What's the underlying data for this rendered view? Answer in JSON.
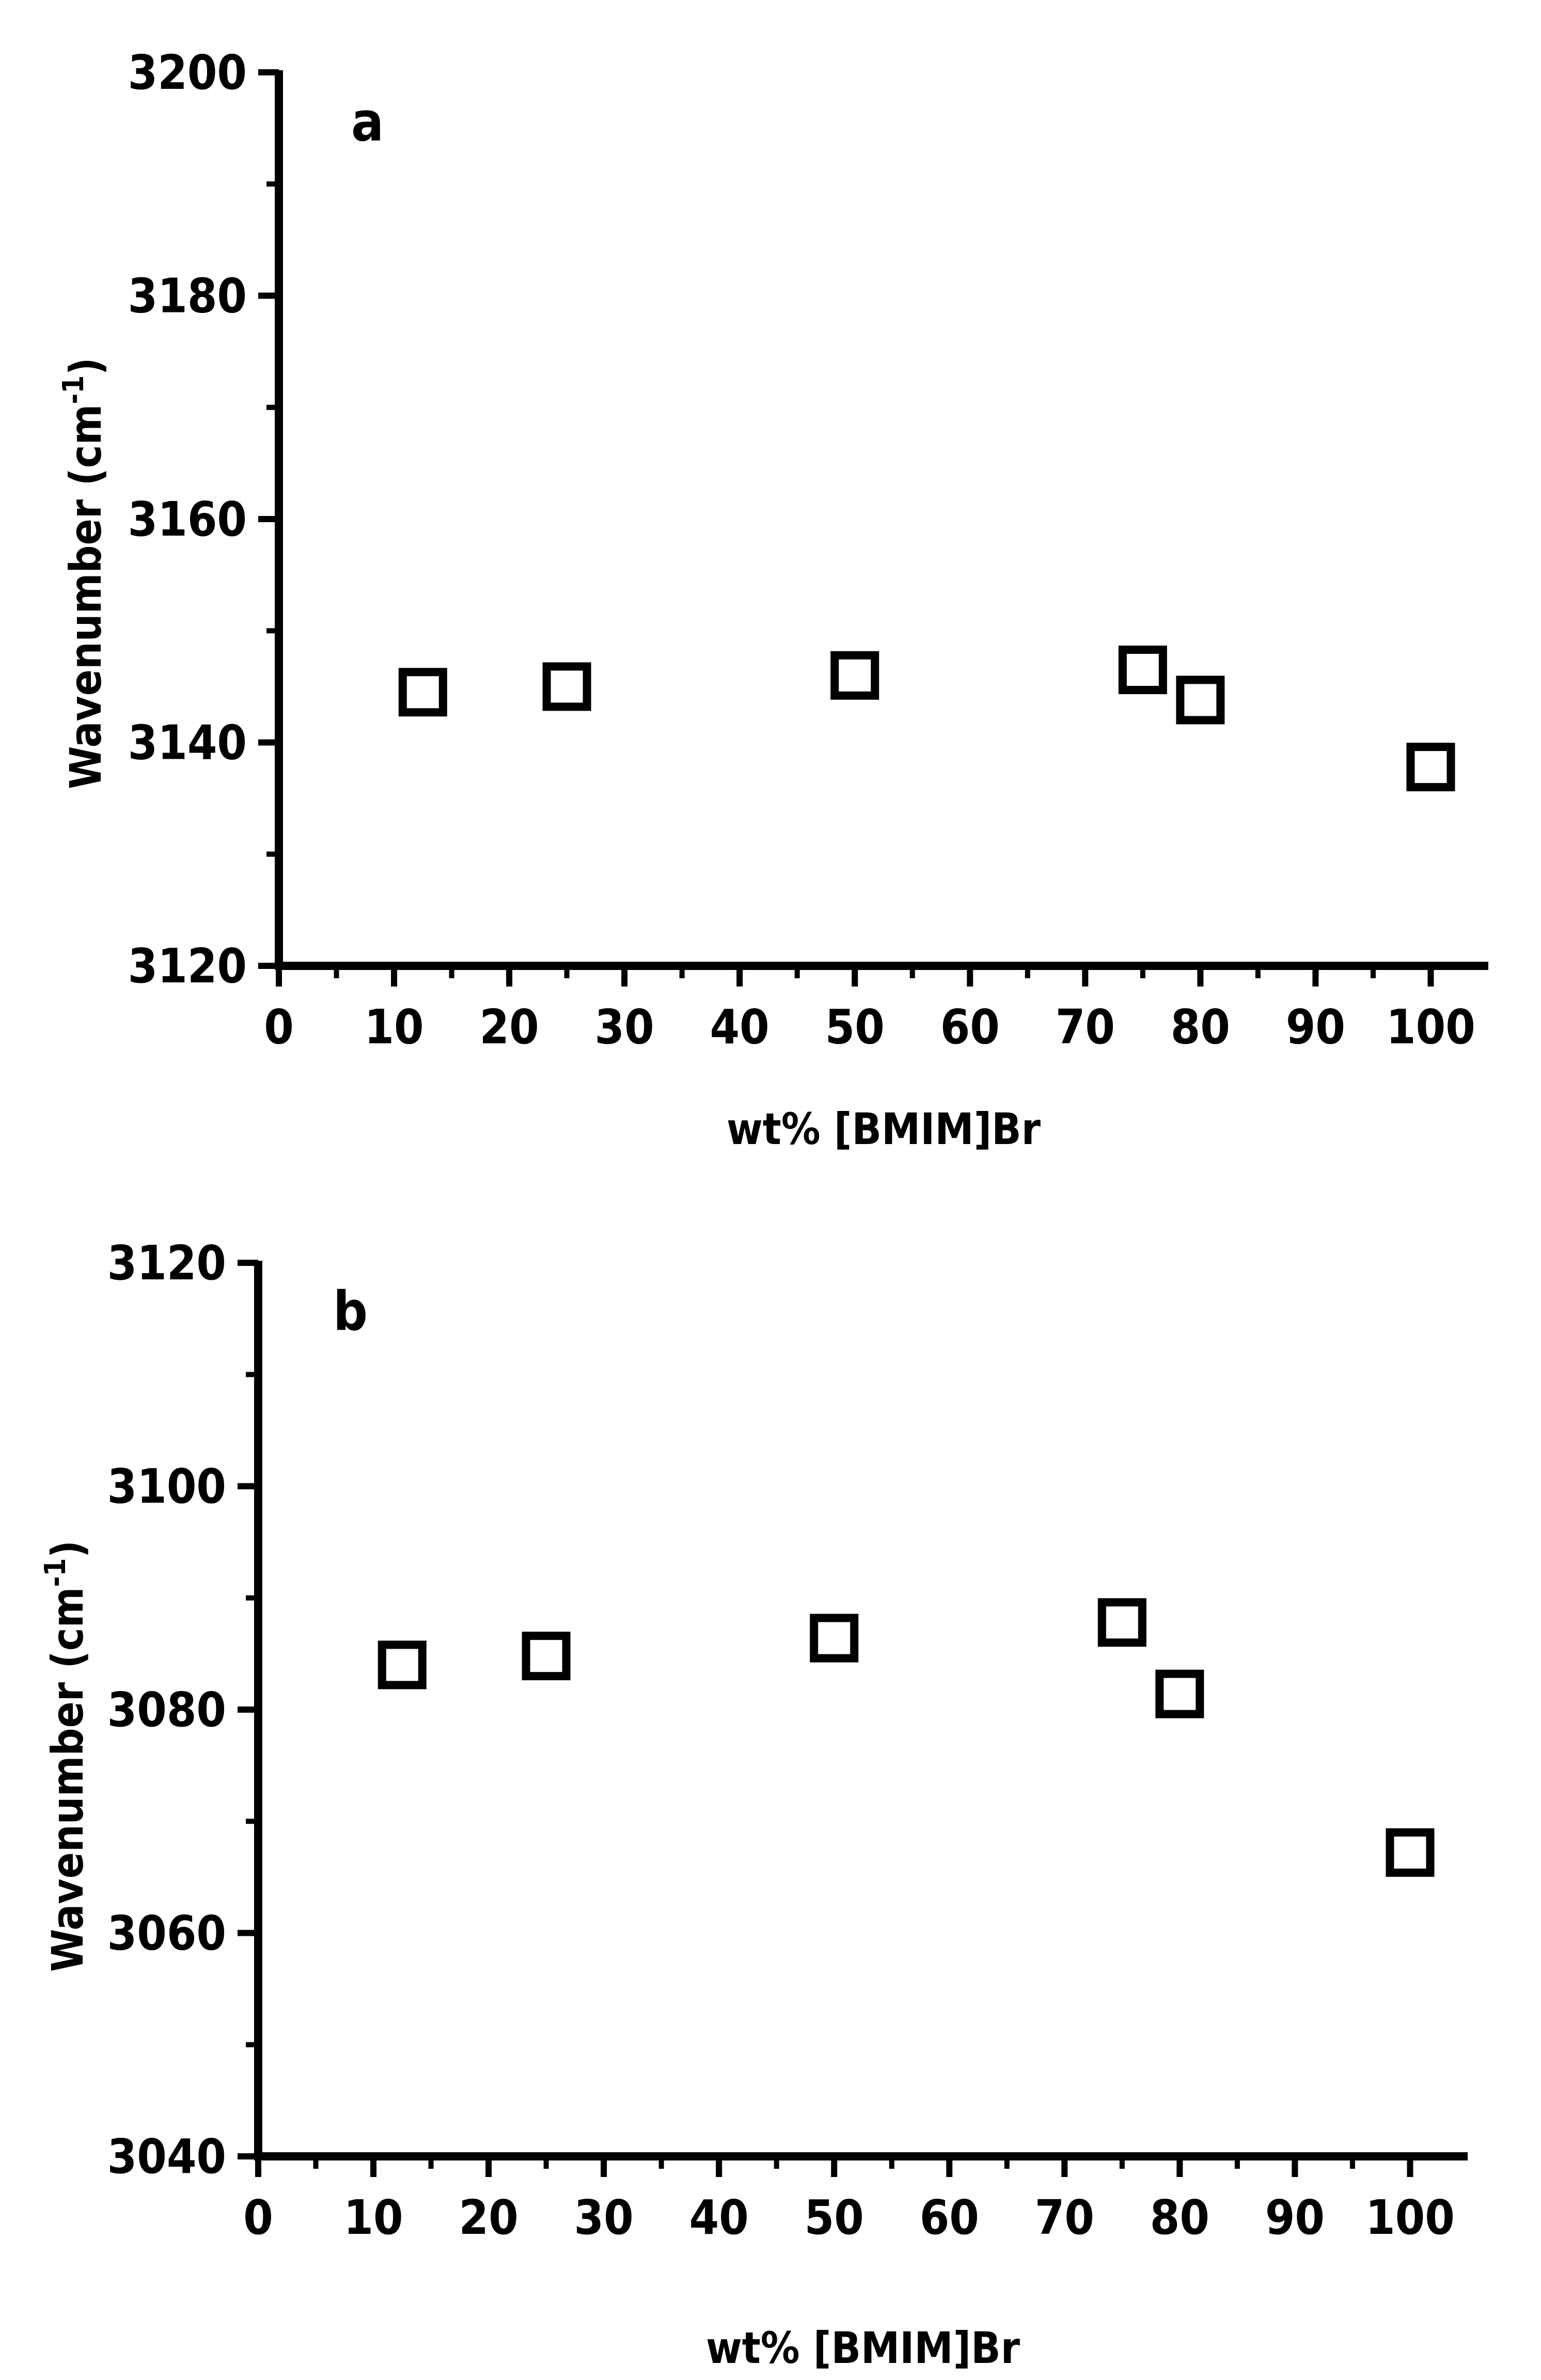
{
  "chart_data": [
    {
      "type": "scatter",
      "panel_label": "a",
      "xlabel": "wt% [BMIM]Br",
      "ylabel": "Wavenumber (cm",
      "ylabel_sup": "-1",
      "ylabel_end": ")",
      "xlim": [
        0,
        105
      ],
      "ylim": [
        3120,
        3200
      ],
      "x_ticks": [
        "0",
        "10",
        "20",
        "30",
        "40",
        "50",
        "60",
        "70",
        "80",
        "90",
        "100"
      ],
      "y_ticks": [
        "3120",
        "3140",
        "3160",
        "3180",
        "3200"
      ],
      "series": [
        {
          "marker": "open-square",
          "points": [
            {
              "x": 12.5,
              "y": 3144.5
            },
            {
              "x": 25,
              "y": 3145
            },
            {
              "x": 50,
              "y": 3146
            },
            {
              "x": 75,
              "y": 3146.5
            },
            {
              "x": 80,
              "y": 3143.8
            },
            {
              "x": 100,
              "y": 3137.8
            }
          ]
        }
      ],
      "grid": false
    },
    {
      "type": "scatter",
      "panel_label": "b",
      "xlabel": "wt% [BMIM]Br",
      "ylabel": "Wavenumber (cm",
      "ylabel_sup": "-1",
      "ylabel_end": ")",
      "xlim": [
        0,
        105
      ],
      "ylim": [
        3040,
        3120
      ],
      "x_ticks": [
        "0",
        "10",
        "20",
        "30",
        "40",
        "50",
        "60",
        "70",
        "80",
        "90",
        "100"
      ],
      "y_ticks": [
        "3040",
        "3060",
        "3080",
        "3100",
        "3120"
      ],
      "series": [
        {
          "marker": "open-square",
          "points": [
            {
              "x": 12.5,
              "y": 3084
            },
            {
              "x": 25,
              "y": 3084.8
            },
            {
              "x": 50,
              "y": 3086.4
            },
            {
              "x": 75,
              "y": 3087.8
            },
            {
              "x": 80,
              "y": 3081.4
            },
            {
              "x": 100,
              "y": 3067.2
            }
          ]
        }
      ],
      "grid": false
    }
  ]
}
